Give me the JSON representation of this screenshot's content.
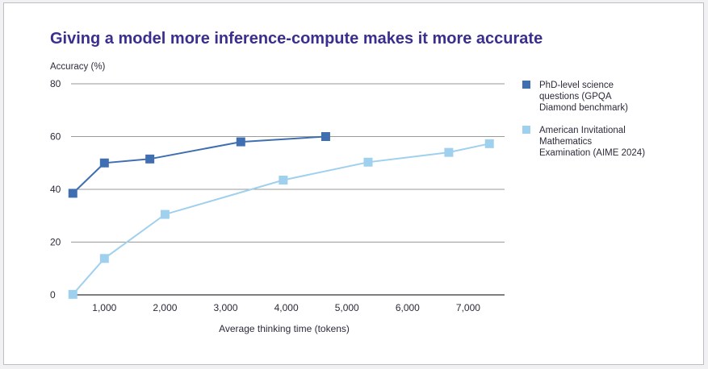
{
  "chart_data": {
    "type": "line",
    "title": "Giving a model more inference-compute makes it more accurate",
    "ylabel": "Accuracy (%)",
    "xlabel": "Average thinking time (tokens)",
    "xlim": [
      450,
      7600
    ],
    "ylim": [
      0,
      80
    ],
    "y_ticks": [
      0,
      20,
      40,
      60,
      80
    ],
    "x_ticks": [
      1000,
      2000,
      3000,
      4000,
      5000,
      6000,
      7000
    ],
    "x_tick_labels": [
      "1,000",
      "2,000",
      "3,000",
      "4,000",
      "5,000",
      "6,000",
      "7,000"
    ],
    "grid": "horizontal",
    "legend_position": "right",
    "series": [
      {
        "name": "PhD-level science questions (GPQA Diamond benchmark)",
        "legend_lines": [
          "PhD-level science",
          "questions (GPQA",
          "Diamond benchmark)"
        ],
        "color": "#3f6fb0",
        "x": [
          480,
          1000,
          1750,
          3250,
          4650
        ],
        "y": [
          38.5,
          50,
          51.5,
          58,
          60
        ]
      },
      {
        "name": "American Invitational Mathematics Examination (AIME 2024)",
        "legend_lines": [
          "American Invitational",
          "Mathematics",
          "Examination (AIME 2024)"
        ],
        "color": "#9fd0ee",
        "x": [
          480,
          1000,
          2000,
          3950,
          5350,
          6680,
          7350
        ],
        "y": [
          0.2,
          13.8,
          30.5,
          43.5,
          50.3,
          54,
          57.3
        ]
      }
    ]
  }
}
